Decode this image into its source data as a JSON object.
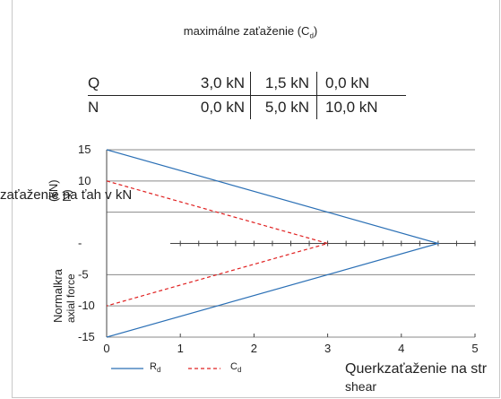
{
  "title": {
    "main": "maximálne zaťaženie (C",
    "sub": "d",
    "close": ")"
  },
  "load_table": [
    {
      "label": "Q",
      "values": [
        "3,0 kN",
        "1,5 kN",
        "0,0 kN"
      ]
    },
    {
      "label": "N",
      "values": [
        "0,0 kN",
        "5,0 kN",
        "10,0 kN"
      ]
    }
  ],
  "axis_labels": {
    "y_line1": "Normalkra",
    "y_line2": "axial force",
    "y_unit": "(kN)",
    "y_unit_frag": "N)",
    "overlay": "zaťaženie na ťah v kN",
    "x_line1": "Querkzaťaženie na str",
    "x_line2": "shear"
  },
  "legend": {
    "items": [
      {
        "label": "R",
        "sub": "d"
      },
      {
        "label": "C",
        "sub": "d"
      }
    ]
  },
  "chart_data": {
    "type": "line",
    "x_ticks": [
      "0",
      "1",
      "2",
      "3",
      "4",
      "5"
    ],
    "y_ticks": [
      "15",
      "10",
      "",
      "-",
      "-5",
      "-10",
      "-15"
    ],
    "xlim": [
      0,
      5
    ],
    "ylim": [
      -15,
      15
    ],
    "grid": true,
    "legend_position": "bottom-left",
    "series": [
      {
        "name": "Rd",
        "color": "#2a6fb5",
        "dash": false,
        "x": [
          0,
          4.5,
          0
        ],
        "y": [
          15,
          0,
          -15
        ]
      },
      {
        "name": "Cd",
        "color": "#e02020",
        "dash": true,
        "x": [
          0,
          3,
          0
        ],
        "y": [
          10,
          0,
          -10
        ]
      }
    ]
  }
}
